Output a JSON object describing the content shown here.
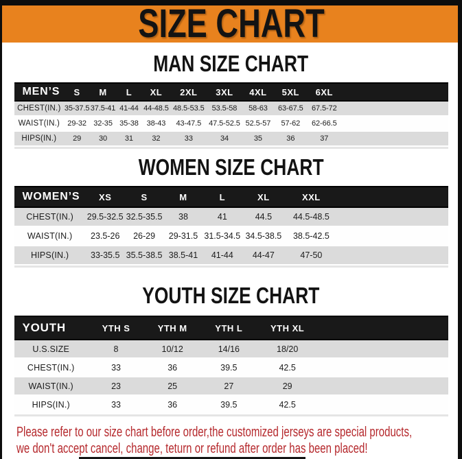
{
  "page": {
    "title": "SIZE CHART"
  },
  "colors": {
    "banner_orange": "#E8821E",
    "header_black": "#191919",
    "row_gray": "#DBDBDB",
    "footer_red": "#B5282C"
  },
  "sections": [
    {
      "heading": "MAN SIZE CHART",
      "label": "MEN’S",
      "columns": [
        "S",
        "M",
        "L",
        "XL",
        "2XL",
        "3XL",
        "4XL",
        "5XL",
        "6XL"
      ],
      "rows": [
        {
          "label": "CHEST(IN.)",
          "values": [
            "35-37.5",
            "37.5-41",
            "41-44",
            "44-48.5",
            "48.5-53.5",
            "53.5-58",
            "58-63",
            "63-67.5",
            "67.5-72"
          ]
        },
        {
          "label": "WAIST(IN.)",
          "values": [
            "29-32",
            "32-35",
            "35-38",
            "38-43",
            "43-47.5",
            "47.5-52.5",
            "52.5-57",
            "57-62",
            "62-66.5"
          ]
        },
        {
          "label": "HIPS(IN.)",
          "values": [
            "29",
            "30",
            "31",
            "32",
            "33",
            "34",
            "35",
            "36",
            "37"
          ]
        }
      ]
    },
    {
      "heading": "WOMEN SIZE CHART",
      "label": "WOMEN’S",
      "columns": [
        "XS",
        "S",
        "M",
        "L",
        "XL",
        "XXL"
      ],
      "rows": [
        {
          "label": "CHEST(IN.)",
          "values": [
            "29.5-32.5",
            "32.5-35.5",
            "38",
            "41",
            "44.5",
            "44.5-48.5"
          ]
        },
        {
          "label": "WAIST(IN.)",
          "values": [
            "23.5-26",
            "26-29",
            "29-31.5",
            "31.5-34.5",
            "34.5-38.5",
            "38.5-42.5"
          ]
        },
        {
          "label": "HIPS(IN.)",
          "values": [
            "33-35.5",
            "35.5-38.5",
            "38.5-41",
            "41-44",
            "44-47",
            "47-50"
          ]
        }
      ]
    },
    {
      "heading": "YOUTH SIZE CHART",
      "label": "YOUTH",
      "columns": [
        "YTH S",
        "YTH M",
        "YTH L",
        "YTH XL"
      ],
      "rows": [
        {
          "label": "U.S.SIZE",
          "values": [
            "8",
            "10/12",
            "14/16",
            "18/20"
          ]
        },
        {
          "label": "CHEST(IN.)",
          "values": [
            "33",
            "36",
            "39.5",
            "42.5"
          ]
        },
        {
          "label": "WAIST(IN.)",
          "values": [
            "23",
            "25",
            "27",
            "29"
          ]
        },
        {
          "label": "HIPS(IN.)",
          "values": [
            "33",
            "36",
            "39.5",
            "42.5"
          ]
        }
      ]
    }
  ],
  "footer": {
    "line1": "Please refer to our size chart before order,the customized jerseys are special products,",
    "line2": "we don't accept cancel, change, teturn or refund after order has been placed!"
  }
}
